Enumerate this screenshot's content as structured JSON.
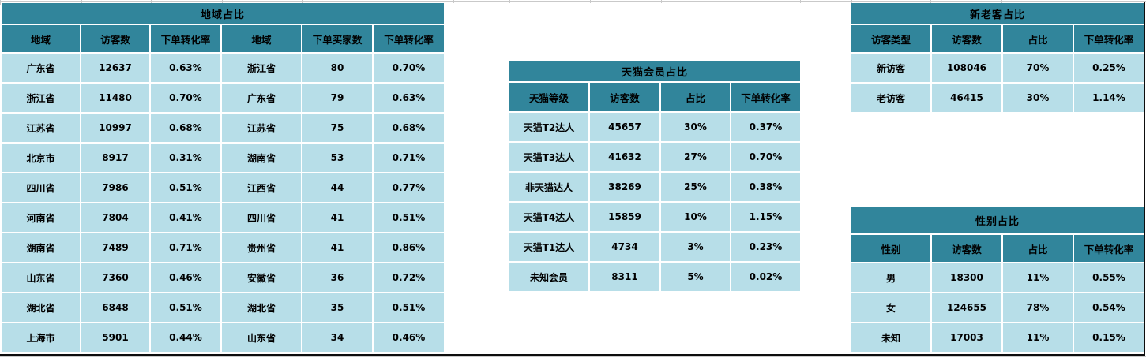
{
  "colors": {
    "header_bg": "#31859B",
    "cell_bg": "#B7DEE8",
    "text": "#000000",
    "sheet_border": "#0d0d0d",
    "gridline": "#c9c9c9"
  },
  "tables": {
    "region": {
      "title": "地域占比",
      "headers": [
        "地域",
        "访客数",
        "下单转化率",
        "地域",
        "下单买家数",
        "下单转化率"
      ],
      "rows": [
        [
          "广东省",
          "12637",
          "0.63%",
          "浙江省",
          "80",
          "0.70%"
        ],
        [
          "浙江省",
          "11480",
          "0.70%",
          "广东省",
          "79",
          "0.63%"
        ],
        [
          "江苏省",
          "10997",
          "0.68%",
          "江苏省",
          "75",
          "0.68%"
        ],
        [
          "北京市",
          "8917",
          "0.31%",
          "湖南省",
          "53",
          "0.71%"
        ],
        [
          "四川省",
          "7986",
          "0.51%",
          "江西省",
          "44",
          "0.77%"
        ],
        [
          "河南省",
          "7804",
          "0.41%",
          "四川省",
          "41",
          "0.51%"
        ],
        [
          "湖南省",
          "7489",
          "0.71%",
          "贵州省",
          "41",
          "0.86%"
        ],
        [
          "山东省",
          "7360",
          "0.46%",
          "安徽省",
          "36",
          "0.72%"
        ],
        [
          "湖北省",
          "6848",
          "0.51%",
          "湖北省",
          "35",
          "0.51%"
        ],
        [
          "上海市",
          "5901",
          "0.44%",
          "山东省",
          "34",
          "0.46%"
        ]
      ]
    },
    "tmall": {
      "title": "天猫会员占比",
      "headers": [
        "天猫等级",
        "访客数",
        "占比",
        "下单转化率"
      ],
      "rows": [
        [
          "天猫T2达人",
          "45657",
          "30%",
          "0.37%"
        ],
        [
          "天猫T3达人",
          "41632",
          "27%",
          "0.70%"
        ],
        [
          "非天猫达人",
          "38269",
          "25%",
          "0.38%"
        ],
        [
          "天猫T4达人",
          "15859",
          "10%",
          "1.15%"
        ],
        [
          "天猫T1达人",
          "4734",
          "3%",
          "0.23%"
        ],
        [
          "未知会员",
          "8311",
          "5%",
          "0.02%"
        ]
      ]
    },
    "visitor_type": {
      "title": "新老客占比",
      "headers": [
        "访客类型",
        "访客数",
        "占比",
        "下单转化率"
      ],
      "rows": [
        [
          "新访客",
          "108046",
          "70%",
          "0.25%"
        ],
        [
          "老访客",
          "46415",
          "30%",
          "1.14%"
        ]
      ]
    },
    "gender": {
      "title": "性别占比",
      "headers": [
        "性别",
        "访客数",
        "占比",
        "下单转化率"
      ],
      "rows": [
        [
          "男",
          "18300",
          "11%",
          "0.55%"
        ],
        [
          "女",
          "124655",
          "78%",
          "0.54%"
        ],
        [
          "未知",
          "17003",
          "11%",
          "0.15%"
        ]
      ]
    }
  }
}
